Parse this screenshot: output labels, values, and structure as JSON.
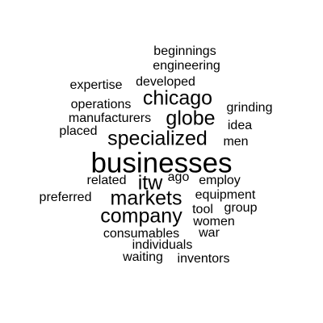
{
  "word_cloud": {
    "words": [
      "beginnings",
      "engineering",
      "expertise",
      "developed",
      "chicago",
      "operations",
      "grinding",
      "manufacturers",
      "globe",
      "idea",
      "placed",
      "specialized",
      "men",
      "businesses",
      "ago",
      "related",
      "itw",
      "employ",
      "markets",
      "preferred",
      "equipment",
      "tool",
      "group",
      "company",
      "women",
      "consumables",
      "war",
      "individuals",
      "waiting",
      "inventors"
    ]
  },
  "colors": {
    "text": "#000000",
    "background": "#ffffff"
  }
}
